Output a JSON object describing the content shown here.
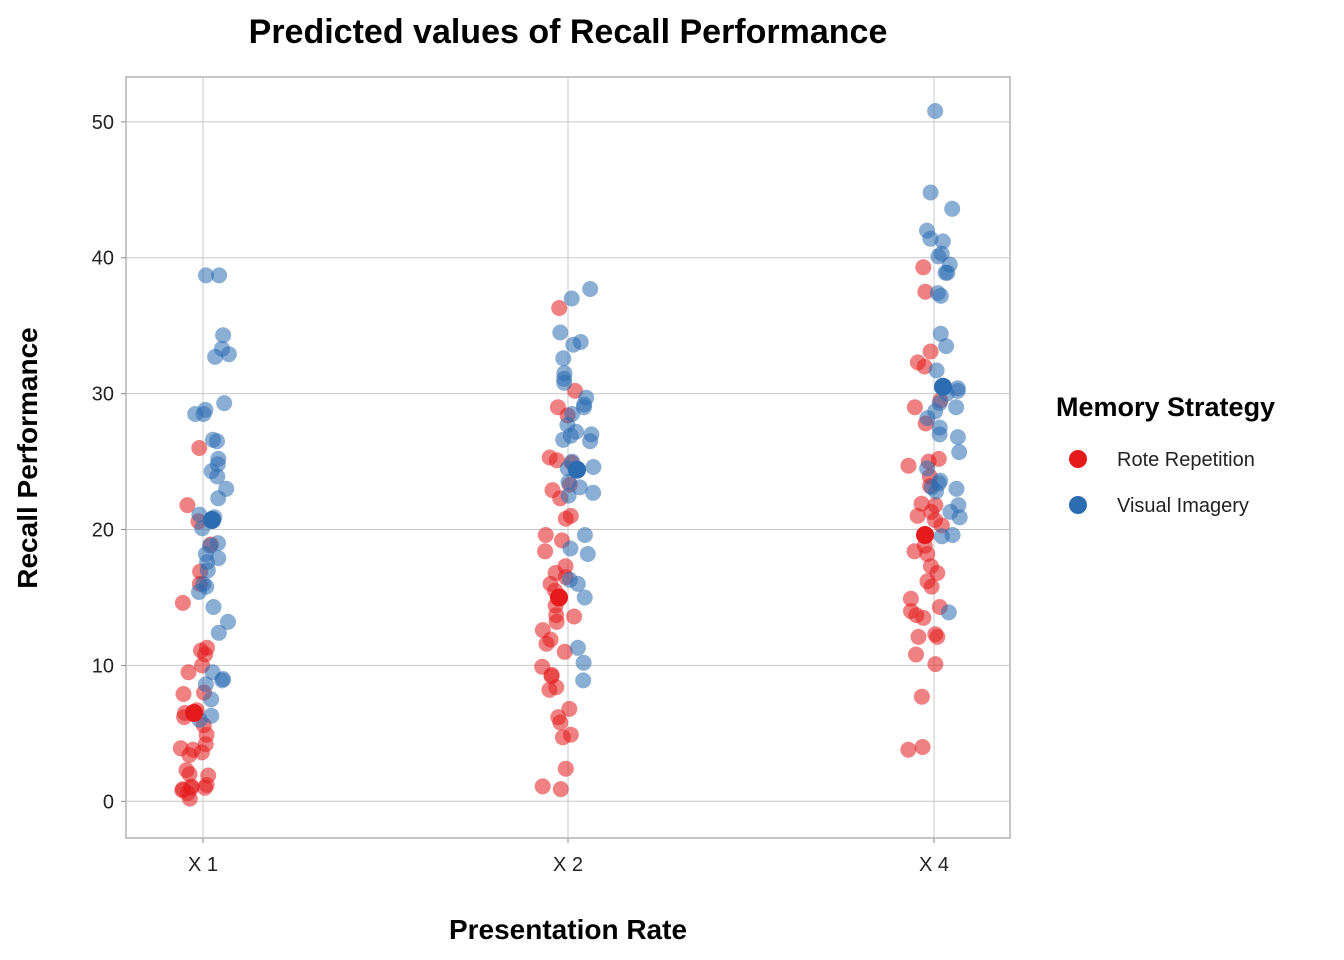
{
  "chart_data": {
    "type": "scatter",
    "title": "Predicted values of Recall Performance",
    "xlabel": "Presentation Rate",
    "ylabel": "Recall Performance",
    "categories": [
      "X 1",
      "X 2",
      "X 4"
    ],
    "ylim": [
      -2.7,
      53.3
    ],
    "yticks": [
      0,
      10,
      20,
      30,
      40,
      50
    ],
    "grid": true,
    "legend": {
      "title": "Memory Strategy",
      "position": "right",
      "entries": [
        "Rote Repetition",
        "Visual Imagery"
      ]
    },
    "series": [
      {
        "name": "Rote Repetition",
        "color": "#E41A1C",
        "predicted": [
          {
            "x": "X 1",
            "y": 6.5
          },
          {
            "x": "X 2",
            "y": 15.0
          },
          {
            "x": "X 4",
            "y": 19.6
          }
        ],
        "observed": [
          {
            "x": "X 1",
            "y": [
              26.0,
              21.8,
              20.6,
              18.9,
              16.9,
              16.0,
              14.6,
              11.3,
              11.1,
              10.8,
              10.0,
              9.5,
              8.0,
              7.9,
              6.7,
              6.5,
              6.2,
              5.6,
              4.9,
              4.2,
              3.9,
              3.8,
              3.6,
              3.4,
              2.3,
              2.0,
              1.9,
              1.2,
              1.1,
              1.0,
              1.0,
              0.9,
              0.8,
              0.6,
              0.2
            ]
          },
          {
            "x": "X 2",
            "y": [
              36.3,
              30.2,
              29.0,
              28.4,
              25.3,
              25.1,
              24.9,
              23.3,
              22.9,
              22.3,
              21.0,
              20.8,
              19.6,
              19.2,
              18.4,
              17.3,
              16.8,
              16.5,
              16.0,
              15.5,
              14.4,
              13.7,
              13.6,
              13.2,
              12.6,
              11.9,
              11.6,
              11.0,
              9.9,
              9.3,
              9.2,
              8.4,
              8.2,
              6.8,
              6.2,
              5.8,
              4.9,
              4.7,
              2.4,
              1.1,
              0.9
            ]
          },
          {
            "x": "X 4",
            "y": [
              39.3,
              37.5,
              33.1,
              32.3,
              32.0,
              29.5,
              29.0,
              27.8,
              25.2,
              25.0,
              24.7,
              23.9,
              23.2,
              21.9,
              21.8,
              21.3,
              21.0,
              20.7,
              20.3,
              18.8,
              18.4,
              18.2,
              17.3,
              16.8,
              16.2,
              15.8,
              14.9,
              14.3,
              14.0,
              13.7,
              13.5,
              12.3,
              12.1,
              12.1,
              10.8,
              10.1,
              7.7,
              4.0,
              3.8
            ]
          }
        ]
      },
      {
        "name": "Visual Imagery",
        "color": "#2C6CB0",
        "predicted": [
          {
            "x": "X 1",
            "y": 20.7
          },
          {
            "x": "X 2",
            "y": 24.4
          },
          {
            "x": "X 4",
            "y": 30.5
          }
        ],
        "observed": [
          {
            "x": "X 1",
            "y": [
              38.7,
              38.7,
              34.3,
              33.3,
              32.9,
              32.7,
              29.3,
              28.8,
              28.5,
              28.5,
              26.6,
              26.5,
              25.2,
              24.8,
              24.3,
              23.9,
              23.0,
              22.3,
              21.1,
              20.9,
              20.1,
              19.0,
              18.8,
              18.2,
              17.9,
              17.6,
              17.0,
              16.0,
              15.8,
              15.4,
              14.3,
              13.2,
              12.4,
              9.5,
              9.0,
              8.9,
              8.6,
              7.5,
              6.3,
              6.0
            ]
          },
          {
            "x": "X 2",
            "y": [
              37.7,
              37.0,
              34.5,
              33.8,
              33.6,
              32.6,
              31.5,
              31.1,
              30.8,
              29.7,
              29.2,
              29.0,
              28.5,
              27.7,
              27.2,
              27.0,
              26.9,
              26.6,
              26.5,
              25.0,
              24.6,
              24.5,
              23.5,
              23.1,
              22.7,
              22.5,
              19.6,
              18.6,
              18.2,
              16.3,
              16.0,
              15.0,
              11.3,
              10.2,
              8.9
            ]
          },
          {
            "x": "X 4",
            "y": [
              50.8,
              44.8,
              43.6,
              42.0,
              41.4,
              41.2,
              40.3,
              40.1,
              39.5,
              38.9,
              38.9,
              37.4,
              37.2,
              34.4,
              33.5,
              31.7,
              30.4,
              30.2,
              30.0,
              29.3,
              29.0,
              28.7,
              28.2,
              27.5,
              27.0,
              26.8,
              25.7,
              24.5,
              23.6,
              23.4,
              23.1,
              23.0,
              22.8,
              21.8,
              21.3,
              20.9,
              19.6,
              19.5,
              13.9
            ]
          }
        ]
      }
    ]
  }
}
